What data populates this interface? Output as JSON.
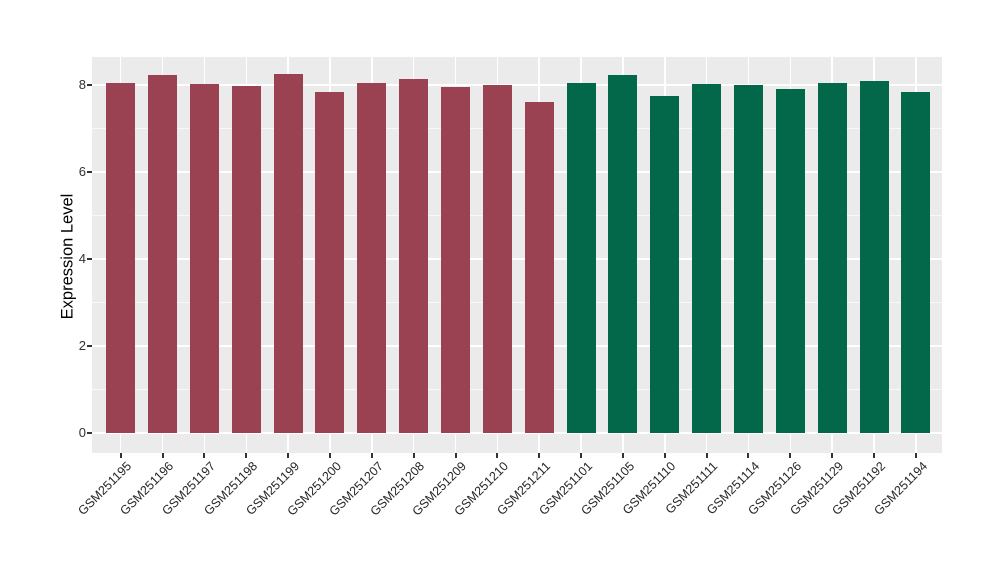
{
  "chart_data": {
    "type": "bar",
    "title": "",
    "xlabel": "",
    "ylabel": "Expression Level",
    "ylim": [
      0,
      8.6
    ],
    "yticks": [
      0,
      2,
      4,
      6,
      8
    ],
    "yticks_minor": [
      1,
      3,
      5,
      7
    ],
    "grid": "on",
    "legend": "none",
    "panel_background": "#EBEBEB",
    "grid_color": "#FFFFFF",
    "tick_color": "#333333",
    "axis_text_color": "#303030",
    "group_colors": {
      "maroon": "#9A4252",
      "green": "#036849"
    },
    "bars": [
      {
        "label": "GSM251195",
        "value": 8.05,
        "group": "maroon"
      },
      {
        "label": "GSM251196",
        "value": 8.22,
        "group": "maroon"
      },
      {
        "label": "GSM251197",
        "value": 8.03,
        "group": "maroon"
      },
      {
        "label": "GSM251198",
        "value": 7.98,
        "group": "maroon"
      },
      {
        "label": "GSM251199",
        "value": 8.25,
        "group": "maroon"
      },
      {
        "label": "GSM251200",
        "value": 7.85,
        "group": "maroon"
      },
      {
        "label": "GSM251207",
        "value": 8.04,
        "group": "maroon"
      },
      {
        "label": "GSM251208",
        "value": 8.14,
        "group": "maroon"
      },
      {
        "label": "GSM251209",
        "value": 7.96,
        "group": "maroon"
      },
      {
        "label": "GSM251210",
        "value": 8.01,
        "group": "maroon"
      },
      {
        "label": "GSM251211",
        "value": 7.6,
        "group": "maroon"
      },
      {
        "label": "GSM251101",
        "value": 8.05,
        "group": "green"
      },
      {
        "label": "GSM251105",
        "value": 8.24,
        "group": "green"
      },
      {
        "label": "GSM251110",
        "value": 7.75,
        "group": "green"
      },
      {
        "label": "GSM251111",
        "value": 8.02,
        "group": "green"
      },
      {
        "label": "GSM251114",
        "value": 8.0,
        "group": "green"
      },
      {
        "label": "GSM251126",
        "value": 7.91,
        "group": "green"
      },
      {
        "label": "GSM251129",
        "value": 8.04,
        "group": "green"
      },
      {
        "label": "GSM251192",
        "value": 8.1,
        "group": "green"
      },
      {
        "label": "GSM251194",
        "value": 7.85,
        "group": "green"
      }
    ]
  }
}
